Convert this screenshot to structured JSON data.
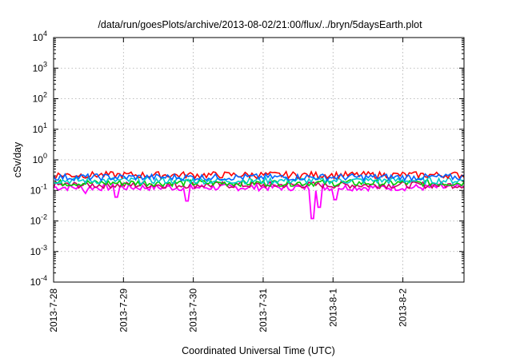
{
  "chart_data": {
    "type": "line",
    "title": "/data/run/goesPlots/archive/2013-08-02/21:00/flux/../bryn/5daysEarth.plot",
    "xlabel": "Coordinated Universal Time (UTC)",
    "ylabel": "cSv/day",
    "yscale": "log",
    "ylim": [
      0.0001,
      10000
    ],
    "xlim": [
      "2013-07-28",
      "2013-08-02T21:00"
    ],
    "grid": true,
    "x_ticks": [
      "2013-7-28",
      "2013-7-29",
      "2013-7-30",
      "2013-7-31",
      "2013-8-1",
      "2013-8-2"
    ],
    "y_ticks": [
      {
        "base": "10",
        "exp": "4"
      },
      {
        "base": "10",
        "exp": "3"
      },
      {
        "base": "10",
        "exp": "2"
      },
      {
        "base": "10",
        "exp": "1"
      },
      {
        "base": "10",
        "exp": "0"
      },
      {
        "base": "10",
        "exp": "-1"
      },
      {
        "base": "10",
        "exp": "-2"
      },
      {
        "base": "10",
        "exp": "-3"
      },
      {
        "base": "10",
        "exp": "-4"
      }
    ],
    "series": [
      {
        "color": "#ff00ff",
        "base": 0.125,
        "dips": [
          {
            "x": "2013-07-31T17:00",
            "y": 0.012
          },
          {
            "x": "2013-07-31T19:20",
            "y": 0.028
          },
          {
            "x": "2013-07-29T22:00",
            "y": 0.045
          },
          {
            "x": "2013-08-01T00:30",
            "y": 0.05
          },
          {
            "x": "2013-07-28T11:00",
            "y": 0.08
          },
          {
            "x": "2013-07-28T21:30",
            "y": 0.06
          }
        ]
      },
      {
        "color": "#cc0066",
        "base": 0.15,
        "dips": []
      },
      {
        "color": "#00cc00",
        "base": 0.175,
        "dips": []
      },
      {
        "color": "#00cccc",
        "base": 0.21,
        "dips": []
      },
      {
        "color": "#ff0000",
        "base": 0.32,
        "dips": []
      },
      {
        "color": "#0066ff",
        "base": 0.27,
        "dips": []
      }
    ]
  }
}
